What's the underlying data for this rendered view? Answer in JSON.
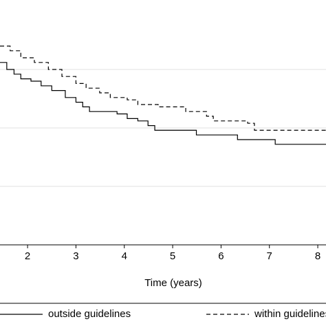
{
  "chart_data": {
    "type": "step",
    "x_label": "Time (years)",
    "xlim": [
      1.43,
      8.17
    ],
    "xticks": [
      2,
      3,
      4,
      5,
      6,
      7,
      8
    ],
    "ylim": [
      0,
      1
    ],
    "yticks": [
      0.25,
      0.5,
      0.75
    ],
    "grid": true,
    "legend": "bottom",
    "series": [
      {
        "name": "outside guidelines",
        "color": "#000000",
        "line_style": "solid",
        "x": [
          1.43,
          1.57,
          1.72,
          1.86,
          2.07,
          2.28,
          2.5,
          2.78,
          3.0,
          3.14,
          3.28,
          3.85,
          4.06,
          4.28,
          4.49,
          4.63,
          5.49,
          6.34,
          7.12,
          8.17
        ],
        "values": [
          0.78,
          0.75,
          0.73,
          0.71,
          0.7,
          0.68,
          0.66,
          0.63,
          0.61,
          0.59,
          0.57,
          0.56,
          0.54,
          0.53,
          0.51,
          0.49,
          0.47,
          0.45,
          0.43,
          0.43
        ]
      },
      {
        "name": "within guidelines",
        "color": "#000000",
        "line_style": "dashed",
        "x": [
          1.43,
          1.64,
          1.86,
          2.14,
          2.43,
          2.71,
          3.0,
          3.21,
          3.49,
          3.71,
          4.06,
          4.28,
          4.7,
          5.27,
          5.7,
          5.84,
          6.55,
          6.69,
          8.17
        ],
        "values": [
          0.85,
          0.83,
          0.8,
          0.78,
          0.75,
          0.72,
          0.69,
          0.67,
          0.65,
          0.63,
          0.62,
          0.6,
          0.59,
          0.57,
          0.55,
          0.53,
          0.52,
          0.49,
          0.48
        ]
      }
    ]
  }
}
